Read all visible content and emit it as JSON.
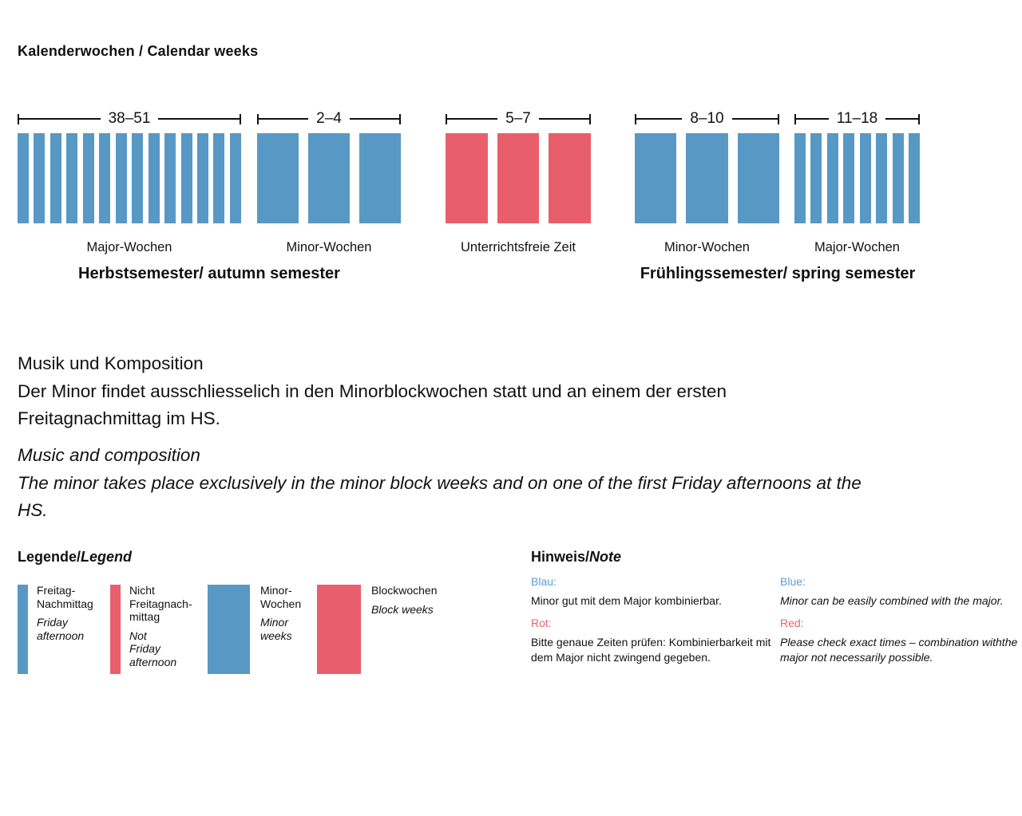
{
  "page": {
    "title": "Kalenderwochen / Calendar weeks"
  },
  "colors": {
    "bar_blue": "#5898c4",
    "bar_red": "#e85f6b",
    "note_blue": "#5b9bd5",
    "note_red": "#e8636f"
  },
  "timeline": {
    "groups": [
      {
        "range": "38–51",
        "weeks": 14,
        "color": "blue",
        "style": "thin",
        "label": "Major-Wochen"
      },
      {
        "range": "2–4",
        "weeks": 3,
        "color": "blue",
        "style": "wide",
        "label": "Minor-Wochen"
      },
      {
        "range": "5–7",
        "weeks": 3,
        "color": "red",
        "style": "wide",
        "label": "Unterrichtsfreie Zeit"
      },
      {
        "range": "8–10",
        "weeks": 3,
        "color": "blue",
        "style": "wide",
        "label": "Minor-Wochen"
      },
      {
        "range": "11–18",
        "weeks": 8,
        "color": "blue",
        "style": "thin",
        "label": "Major-Wochen"
      }
    ],
    "semesters": [
      {
        "label": "Herbstsemester/ autumn semester"
      },
      {
        "label": "Frühlingssemester/ spring semester"
      }
    ]
  },
  "description": {
    "de": "Musik und Komposition\nDer Minor findet ausschliesselich in den Minorblockwochen statt und an einem der ersten\nFreitagnachmittag im HS.",
    "en": "Music and composition\nThe minor takes place exclusively in the minor block weeks and on one of the first Friday afternoons at the\nHS."
  },
  "legend": {
    "title_de": "Legende/",
    "title_en": "Legend",
    "items": [
      {
        "swatch": "blue-thin",
        "label_de": "Freitag-\nNachmittag",
        "label_en": "Friday\nafternoon"
      },
      {
        "swatch": "red-thin",
        "label_de": "Nicht\nFreitagnach-\nmittag",
        "label_en": "Not\nFriday\nafternoon"
      },
      {
        "swatch": "blue-wide",
        "label_de": "Minor-\nWochen",
        "label_en": "Minor\nweeks"
      },
      {
        "swatch": "red-wide",
        "label_de": "Blockwochen",
        "label_en": "Block weeks"
      }
    ]
  },
  "note": {
    "title_de": "Hinweis/",
    "title_en": "Note",
    "de": [
      {
        "label": "Blau:",
        "color": "blue",
        "text": "Minor gut mit dem Major kombinierbar."
      },
      {
        "label": "Rot:",
        "color": "red",
        "text": "Bitte genaue Zeiten prüfen: Kombinierbarkeit mit\ndem Major nicht zwingend gegeben."
      }
    ],
    "en": [
      {
        "label": "Blue:",
        "color": "blue",
        "text": "Minor can be easily combined with the major."
      },
      {
        "label": "Red:",
        "color": "red",
        "text": "Please check exact times – combination withthe\nmajor not necessarily possible."
      }
    ]
  }
}
